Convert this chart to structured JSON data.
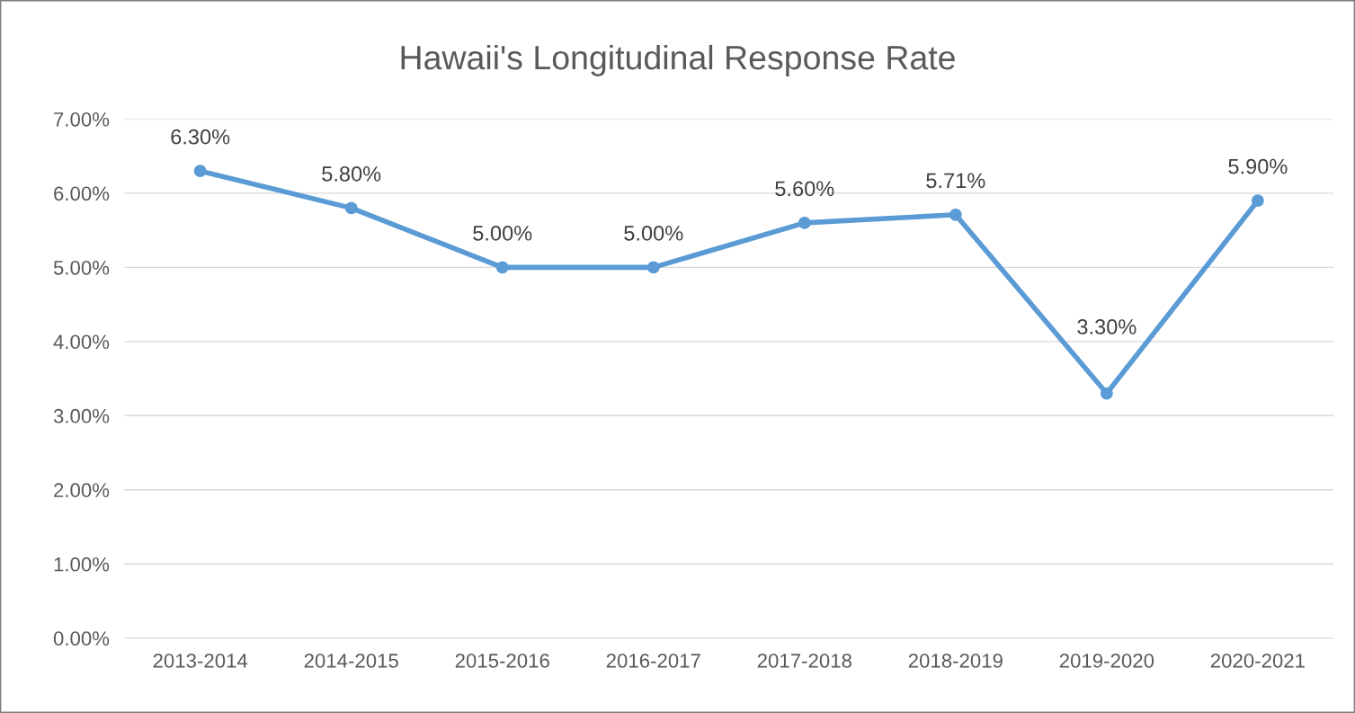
{
  "chart_data": {
    "type": "line",
    "title": "Hawaii's Longitudinal Response Rate",
    "categories": [
      "2013-2014",
      "2014-2015",
      "2015-2016",
      "2016-2017",
      "2017-2018",
      "2018-2019",
      "2019-2020",
      "2020-2021"
    ],
    "series": [
      {
        "color": "#5b9bd5",
        "values": [
          6.3,
          5.8,
          5.0,
          5.0,
          5.6,
          5.71,
          3.3,
          5.9
        ],
        "value_labels": [
          "6.30%",
          "5.80%",
          "5.00%",
          "5.00%",
          "5.60%",
          "5.71%",
          "3.30%",
          "5.90%"
        ]
      }
    ],
    "ylim": [
      0,
      7
    ],
    "yticks": [
      {
        "value": 0,
        "label": "0.00%"
      },
      {
        "value": 1,
        "label": "1.00%"
      },
      {
        "value": 2,
        "label": "2.00%"
      },
      {
        "value": 3,
        "label": "3.00%"
      },
      {
        "value": 4,
        "label": "4.00%"
      },
      {
        "value": 5,
        "label": "5.00%"
      },
      {
        "value": 6,
        "label": "6.00%"
      },
      {
        "value": 7,
        "label": "7.00%"
      }
    ],
    "grid": "y",
    "marker": "circle",
    "line_style": "solid"
  }
}
